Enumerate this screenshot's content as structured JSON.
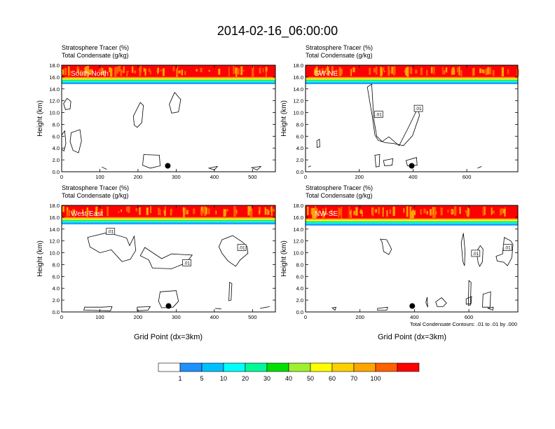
{
  "title": "2014-02-16_06:00:00",
  "panel_header_line1": "Stratosphere Tracer   (%)",
  "panel_header_line2": "Total Condensate   (g/kg)",
  "ylabel": "Height (km)",
  "xlabel": "Grid Point (dx=3km)",
  "contour_note": "Total Condensate Contours: .01 to .01 by .000",
  "contour_label": ".01",
  "colors": {
    "levels": [
      "#ffffff",
      "#1e90ff",
      "#00bfff",
      "#00ffff",
      "#00fa9a",
      "#00e000",
      "#a0f030",
      "#ffff00",
      "#ffd000",
      "#ffa500",
      "#ff6000",
      "#ff0000"
    ],
    "contour": "#000000",
    "marker": "#000000"
  },
  "colorbar": {
    "labels": [
      "1",
      "5",
      "10",
      "20",
      "30",
      "40",
      "50",
      "60",
      "70",
      "100"
    ]
  },
  "chart_data": [
    {
      "type": "heatmap",
      "name": "South-North",
      "xlim": [
        0,
        560
      ],
      "ylim": [
        0,
        18
      ],
      "xticks": [
        0,
        100,
        200,
        300,
        400,
        500
      ],
      "yticks": [
        "0.0",
        "2.0",
        "4.0",
        "6.0",
        "8.0",
        "10.0",
        "12.0",
        "14.0",
        "16.0",
        "18.0"
      ],
      "tropopause_km": 15.0,
      "marker": {
        "x": 278,
        "y": 1.0
      },
      "contour_labels": []
    },
    {
      "type": "heatmap",
      "name": "SW-NE",
      "xlim": [
        0,
        790
      ],
      "ylim": [
        0,
        18
      ],
      "xticks": [
        0,
        200,
        400,
        600
      ],
      "yticks": [
        "0.0",
        "2.0",
        "4.0",
        "6.0",
        "8.0",
        "10.0",
        "12.0",
        "14.0",
        "16.0",
        "18.0"
      ],
      "tropopause_km": 15.0,
      "marker": {
        "x": 395,
        "y": 1.0
      },
      "contour_labels": [
        {
          "x": 272,
          "y": 9.7
        },
        {
          "x": 420,
          "y": 10.7
        }
      ]
    },
    {
      "type": "heatmap",
      "name": "West-East",
      "xlim": [
        0,
        560
      ],
      "ylim": [
        0,
        18
      ],
      "xticks": [
        0,
        100,
        200,
        300,
        400,
        500
      ],
      "yticks": [
        "0.0",
        "2.0",
        "4.0",
        "6.0",
        "8.0",
        "10.0",
        "12.0",
        "14.0",
        "16.0",
        "18.0"
      ],
      "tropopause_km": 15.0,
      "marker": {
        "x": 280,
        "y": 1.0
      },
      "contour_labels": [
        {
          "x": 128,
          "y": 13.6
        },
        {
          "x": 328,
          "y": 8.3
        },
        {
          "x": 472,
          "y": 10.9
        }
      ]
    },
    {
      "type": "heatmap",
      "name": "NW-SE",
      "xlim": [
        0,
        780
      ],
      "ylim": [
        0,
        18
      ],
      "xticks": [
        0,
        200,
        400,
        600
      ],
      "yticks": [
        "0.0",
        "2.0",
        "4.0",
        "6.0",
        "8.0",
        "10.0",
        "12.0",
        "14.0",
        "16.0",
        "18.0"
      ],
      "tropopause_km": 14.8,
      "marker": {
        "x": 392,
        "y": 1.0
      },
      "contour_labels": [
        {
          "x": 625,
          "y": 9.9
        },
        {
          "x": 742,
          "y": 10.9
        }
      ]
    }
  ]
}
